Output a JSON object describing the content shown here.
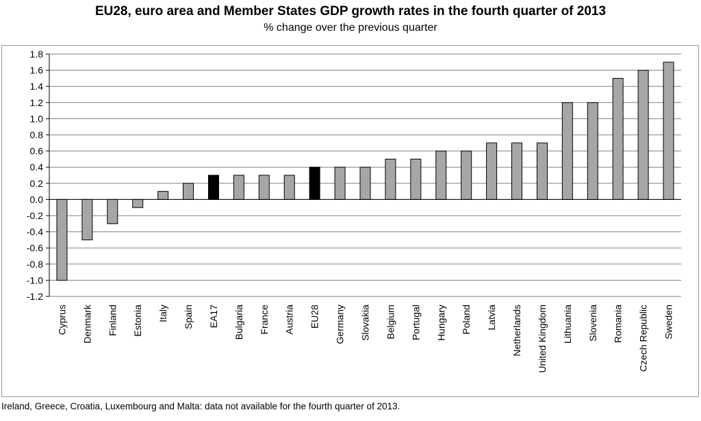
{
  "chart_data": {
    "type": "bar",
    "title": "EU28, euro area and Member States GDP growth rates in the fourth quarter of 2013",
    "subtitle": "% change over the previous quarter",
    "categories": [
      "Cyprus",
      "Denmark",
      "Finland",
      "Estonia",
      "Italy",
      "Spain",
      "EA17",
      "Bulgaria",
      "France",
      "Austria",
      "EU28",
      "Germany",
      "Slovakia",
      "Belgium",
      "Portugal",
      "Hungary",
      "Poland",
      "Latvia",
      "Netherlands",
      "United Kingdom",
      "Lithuania",
      "Slovenia",
      "Romania",
      "Czech Republic",
      "Sweden"
    ],
    "values": [
      -1.0,
      -0.5,
      -0.3,
      -0.1,
      0.1,
      0.2,
      0.3,
      0.3,
      0.3,
      0.3,
      0.4,
      0.4,
      0.4,
      0.5,
      0.5,
      0.6,
      0.6,
      0.7,
      0.7,
      0.7,
      1.2,
      1.2,
      1.5,
      1.6,
      1.7
    ],
    "highlight": [
      "EA17",
      "EU28"
    ],
    "ylim": [
      -1.2,
      1.8
    ],
    "yticks": [
      "1.8",
      "1.6",
      "1.4",
      "1.2",
      "1.0",
      "0.8",
      "0.6",
      "0.4",
      "0.2",
      "0.0",
      "-0.2",
      "-0.4",
      "-0.6",
      "-0.8",
      "-1.0",
      "-1.2"
    ],
    "grid": true,
    "colors": {
      "bar": "#a6a6a6",
      "highlight": "#000000",
      "grid": "#808080"
    }
  },
  "footnote": "Ireland, Greece, Croatia, Luxembourg and Malta: data not available for the fourth quarter of 2013."
}
